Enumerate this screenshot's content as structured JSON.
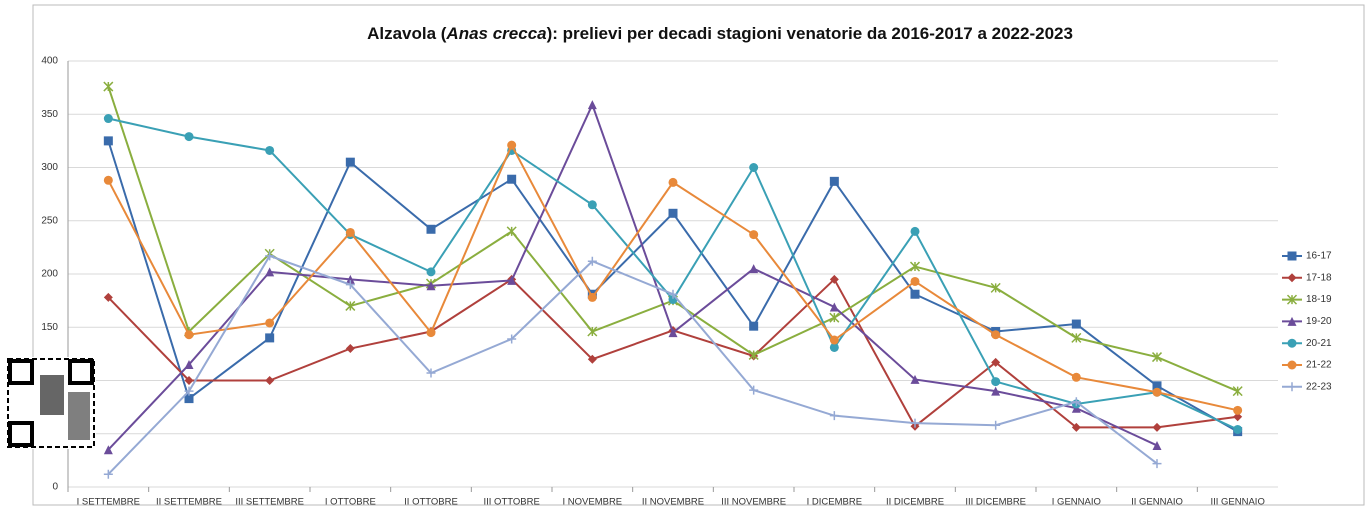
{
  "chart_data": {
    "type": "line",
    "title": [
      "Alzavola (",
      "Anas crecca",
      "): prelievi per decadi stagioni venatorie da 2016-2017 a 2022-2023"
    ],
    "categories": [
      "I SETTEMBRE",
      "II SETTEMBRE",
      "III SETTEMBRE",
      "I OTTOBRE",
      "II OTTOBRE",
      "III OTTOBRE",
      "I NOVEMBRE",
      "II NOVEMBRE",
      "III NOVEMBRE",
      "I DICEMBRE",
      "II DICEMBRE",
      "III DICEMBRE",
      "I GENNAIO",
      "II GENNAIO",
      "III GENNAIO"
    ],
    "ylim": [
      0,
      400
    ],
    "yticks": [
      0,
      50,
      100,
      150,
      200,
      250,
      300,
      350,
      400
    ],
    "grid": true,
    "legend": "right",
    "series": [
      {
        "name": "16-17",
        "color": "#3a6bab",
        "marker": "square",
        "values": [
          325,
          83,
          140,
          305,
          242,
          289,
          181,
          257,
          151,
          287,
          181,
          146,
          153,
          95,
          52
        ]
      },
      {
        "name": "17-18",
        "color": "#b0403c",
        "marker": "diamond",
        "values": [
          178,
          100,
          100,
          130,
          146,
          195,
          120,
          147,
          123,
          195,
          57,
          117,
          56,
          56,
          66
        ]
      },
      {
        "name": "18-19",
        "color": "#8aae3f",
        "marker": "x",
        "values": [
          376,
          146,
          219,
          170,
          191,
          240,
          146,
          175,
          124,
          159,
          207,
          187,
          140,
          122,
          90
        ]
      },
      {
        "name": "19-20",
        "color": "#6b4c9a",
        "marker": "triangle",
        "values": [
          35,
          115,
          202,
          195,
          189,
          194,
          359,
          145,
          205,
          169,
          101,
          90,
          74,
          39,
          null
        ]
      },
      {
        "name": "20-21",
        "color": "#3aa0b5",
        "marker": "circle",
        "values": [
          346,
          329,
          316,
          237,
          202,
          316,
          265,
          176,
          300,
          131,
          240,
          99,
          78,
          89,
          54
        ]
      },
      {
        "name": "21-22",
        "color": "#e8893a",
        "marker": "circle",
        "values": [
          288,
          143,
          154,
          239,
          145,
          321,
          178,
          286,
          237,
          138,
          193,
          143,
          103,
          89,
          72
        ]
      },
      {
        "name": "22-23",
        "color": "#95a9d4",
        "marker": "plus",
        "values": [
          12,
          90,
          217,
          190,
          107,
          139,
          212,
          181,
          91,
          67,
          60,
          58,
          80,
          22,
          null
        ]
      }
    ]
  }
}
